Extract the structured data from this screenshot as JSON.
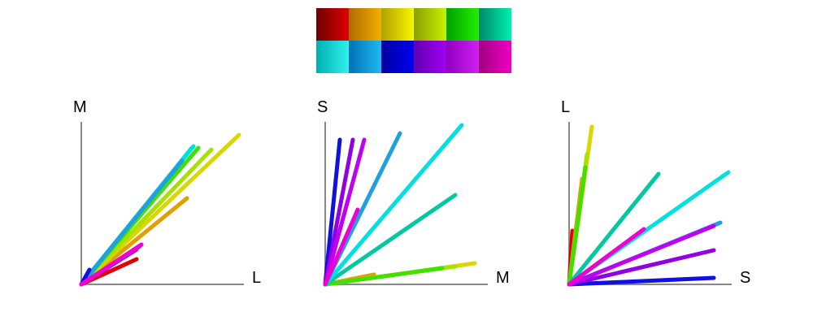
{
  "swatches": [
    {
      "from": "#6e0000",
      "to": "#e00000"
    },
    {
      "from": "#b06a00",
      "to": "#f0b000"
    },
    {
      "from": "#b0a000",
      "to": "#f8f800"
    },
    {
      "from": "#88a000",
      "to": "#c8f000"
    },
    {
      "from": "#00a000",
      "to": "#20f000"
    },
    {
      "from": "#008868",
      "to": "#00f0b0"
    },
    {
      "from": "#00b0b0",
      "to": "#30f0f0"
    },
    {
      "from": "#0070b8",
      "to": "#20b8f0"
    },
    {
      "from": "#0000a0",
      "to": "#0000f0"
    },
    {
      "from": "#6000b0",
      "to": "#a000f0"
    },
    {
      "from": "#9000c0",
      "to": "#d020f0"
    },
    {
      "from": "#a00080",
      "to": "#f000c0"
    }
  ],
  "plots": [
    {
      "xlabel": "L",
      "ylabel": "M",
      "rays": [
        {
          "color": "#e00000",
          "end": [
            0.34,
            0.155
          ]
        },
        {
          "color": "#e0a000",
          "end": [
            0.65,
            0.53
          ]
        },
        {
          "color": "#d8d800",
          "end": [
            0.97,
            0.92
          ]
        },
        {
          "color": "#a8e000",
          "end": [
            0.8,
            0.83
          ]
        },
        {
          "color": "#40e000",
          "end": [
            0.72,
            0.84
          ]
        },
        {
          "color": "#00c8a0",
          "end": [
            0.68,
            0.84
          ]
        },
        {
          "color": "#00e0e0",
          "end": [
            0.69,
            0.85
          ]
        },
        {
          "color": "#20a0e0",
          "end": [
            0.62,
            0.76
          ]
        },
        {
          "color": "#1010e0",
          "end": [
            0.05,
            0.09
          ]
        },
        {
          "color": "#9000e0",
          "end": [
            0.34,
            0.215
          ]
        },
        {
          "color": "#c000f0",
          "end": [
            0.36,
            0.235
          ]
        },
        {
          "color": "#f000d0",
          "end": [
            0.37,
            0.245
          ]
        }
      ]
    },
    {
      "xlabel": "M",
      "ylabel": "S",
      "rays": [
        {
          "color": "#e00000",
          "end": [
            0.05,
            0.02
          ]
        },
        {
          "color": "#e0a000",
          "end": [
            0.3,
            0.06
          ]
        },
        {
          "color": "#d8d800",
          "end": [
            0.92,
            0.13
          ]
        },
        {
          "color": "#a8e000",
          "end": [
            0.8,
            0.11
          ]
        },
        {
          "color": "#40e000",
          "end": [
            0.72,
            0.1
          ]
        },
        {
          "color": "#00c8a0",
          "end": [
            0.8,
            0.55
          ]
        },
        {
          "color": "#00e0e0",
          "end": [
            0.84,
            0.98
          ]
        },
        {
          "color": "#20a0e0",
          "end": [
            0.46,
            0.93
          ]
        },
        {
          "color": "#1010e0",
          "end": [
            0.09,
            0.89
          ]
        },
        {
          "color": "#9000e0",
          "end": [
            0.17,
            0.89
          ]
        },
        {
          "color": "#c000f0",
          "end": [
            0.24,
            0.89
          ]
        },
        {
          "color": "#f000d0",
          "end": [
            0.2,
            0.46
          ]
        }
      ]
    },
    {
      "xlabel": "S",
      "ylabel": "L",
      "rays": [
        {
          "color": "#e00000",
          "end": [
            0.02,
            0.33
          ]
        },
        {
          "color": "#e0a000",
          "end": [
            0.08,
            0.65
          ]
        },
        {
          "color": "#d8d800",
          "end": [
            0.14,
            0.97
          ]
        },
        {
          "color": "#a8e000",
          "end": [
            0.11,
            0.8
          ]
        },
        {
          "color": "#40e000",
          "end": [
            0.1,
            0.72
          ]
        },
        {
          "color": "#00c8a0",
          "end": [
            0.55,
            0.68
          ]
        },
        {
          "color": "#00e0e0",
          "end": [
            0.98,
            0.69
          ]
        },
        {
          "color": "#20a0e0",
          "end": [
            0.93,
            0.38
          ]
        },
        {
          "color": "#1010e0",
          "end": [
            0.89,
            0.04
          ]
        },
        {
          "color": "#9000e0",
          "end": [
            0.89,
            0.21
          ]
        },
        {
          "color": "#c000f0",
          "end": [
            0.89,
            0.36
          ]
        },
        {
          "color": "#f000d0",
          "end": [
            0.46,
            0.34
          ]
        }
      ]
    }
  ]
}
